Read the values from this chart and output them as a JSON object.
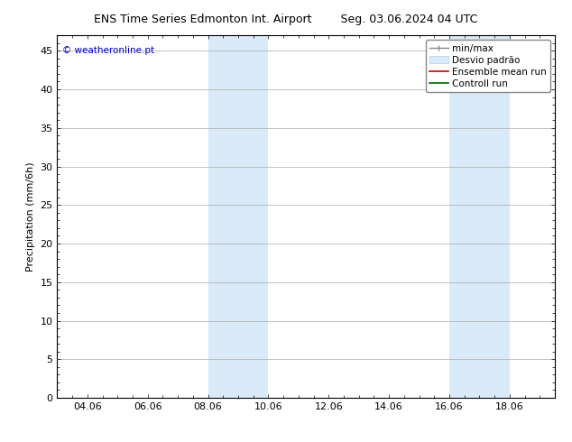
{
  "title_left": "ENS Time Series Edmonton Int. Airport",
  "title_right": "Seg. 03.06.2024 04 UTC",
  "ylabel": "Precipitation (mm/6h)",
  "watermark": "© weatheronline.pt",
  "watermark_color": "#0000cc",
  "ylim": [
    0,
    47
  ],
  "yticks": [
    0,
    5,
    10,
    15,
    20,
    25,
    30,
    35,
    40,
    45
  ],
  "xtick_labels": [
    "04.06",
    "06.06",
    "08.06",
    "10.06",
    "12.06",
    "14.06",
    "16.06",
    "18.06"
  ],
  "xtick_positions": [
    3,
    5,
    7,
    9,
    11,
    13,
    15,
    17
  ],
  "xlim": [
    2,
    18.5
  ],
  "shade_regions": [
    {
      "xstart": 7,
      "xend": 9
    },
    {
      "xstart": 15,
      "xend": 17
    }
  ],
  "shade_color": "#daeaf8",
  "bg_color": "#ffffff",
  "grid_color": "#aaaaaa",
  "tick_color": "#000000",
  "font_size": 8,
  "title_fontsize": 9,
  "legend_fontsize": 7.5
}
